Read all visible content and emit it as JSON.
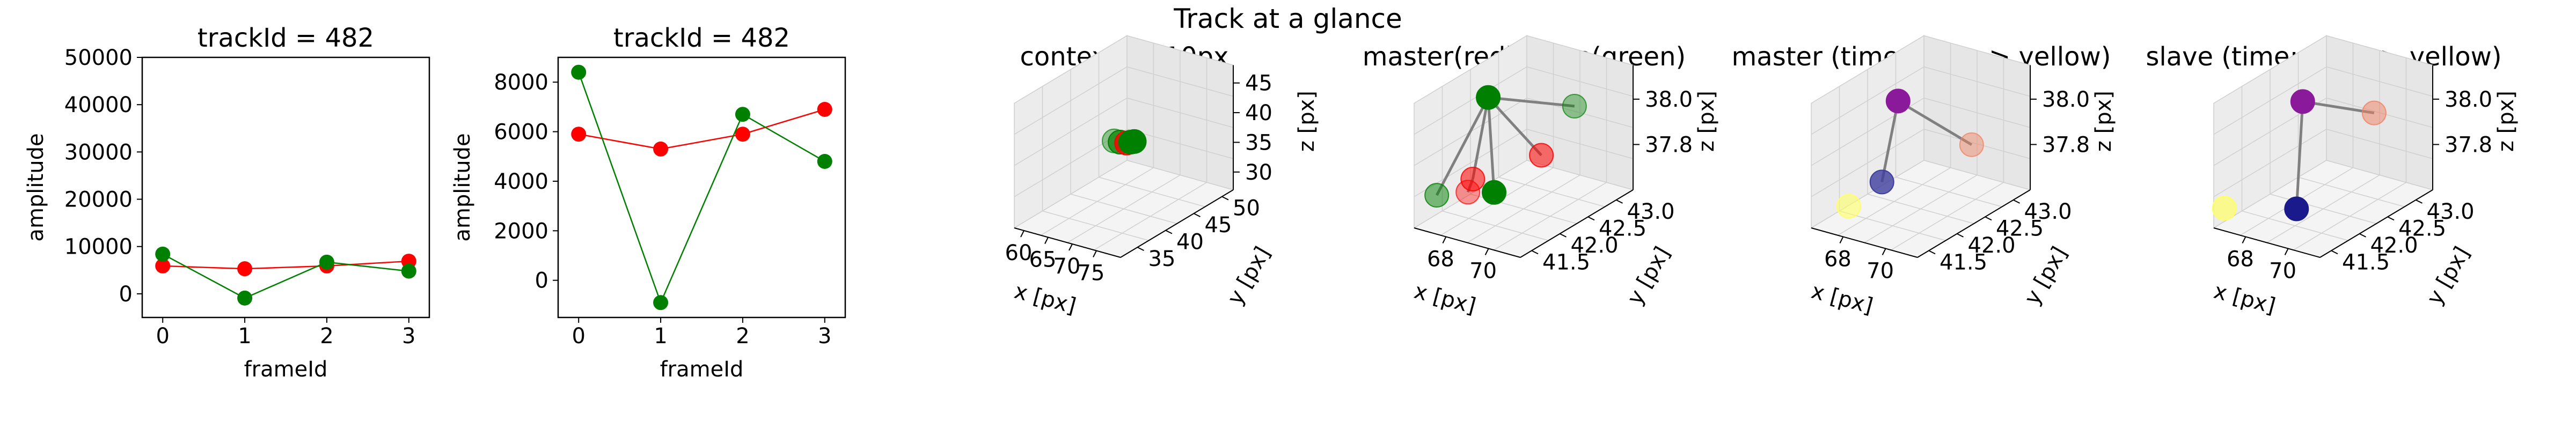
{
  "figure": {
    "title": "Track at a glance"
  },
  "colors": {
    "master": "#ff0000",
    "slave": "#008000",
    "time_start": "#1a1a8c",
    "time_end": "#ffff66",
    "connector": "#808080",
    "pane": "#f2f2f2"
  },
  "chart_data": [
    {
      "type": "line",
      "title": "trackId = 482",
      "xlabel": "frameId",
      "ylabel": "amplitude",
      "x": [
        0,
        1,
        2,
        3
      ],
      "xticks": [
        "0",
        "1",
        "2",
        "3"
      ],
      "ylim": [
        -5000,
        50000
      ],
      "yticks": [
        "0",
        "10000",
        "20000",
        "30000",
        "40000",
        "50000"
      ],
      "series": [
        {
          "color": "#ff0000",
          "values": [
            5900,
            5300,
            5900,
            6900
          ]
        },
        {
          "color": "#008000",
          "values": [
            8400,
            -900,
            6700,
            4800
          ]
        }
      ]
    },
    {
      "type": "line",
      "title": "trackId = 482",
      "xlabel": "frameId",
      "ylabel": "amplitude",
      "x": [
        0,
        1,
        2,
        3
      ],
      "xticks": [
        "0",
        "1",
        "2",
        "3"
      ],
      "ylim": [
        -1500,
        9000
      ],
      "yticks": [
        "0",
        "2000",
        "4000",
        "6000",
        "8000"
      ],
      "series": [
        {
          "color": "#ff0000",
          "values": [
            5900,
            5300,
            5900,
            6900
          ]
        },
        {
          "color": "#008000",
          "values": [
            8400,
            -900,
            6700,
            4800
          ]
        }
      ]
    },
    {
      "type": "scatter",
      "title": "context +- 10px",
      "xlabel": "x [px]",
      "ylabel": "y [px]",
      "zlabel": "z [px]",
      "xticks": [
        "60",
        "65",
        "70",
        "75"
      ],
      "yticks": [
        "35",
        "40",
        "45",
        "50"
      ],
      "zticks": [
        "30",
        "35",
        "40",
        "45"
      ],
      "xlim": [
        58,
        80
      ],
      "ylim": [
        32,
        52
      ],
      "zlim": [
        27,
        48
      ],
      "points": [
        {
          "x": 67,
          "y": 42,
          "z": 38,
          "color": "#008000",
          "alpha": 0.4
        },
        {
          "x": 68,
          "y": 42.2,
          "z": 37.9,
          "color": "#008000",
          "alpha": 0.7
        },
        {
          "x": 69,
          "y": 42.5,
          "z": 37.8,
          "color": "#ff0000",
          "alpha": 0.8
        },
        {
          "x": 69.5,
          "y": 42.8,
          "z": 37.9,
          "color": "#008000",
          "alpha": 1.0
        },
        {
          "x": 70,
          "y": 43,
          "z": 38,
          "color": "#008000",
          "alpha": 1.0
        }
      ]
    },
    {
      "type": "scatter",
      "title": "master(red) slave(green)",
      "ylabel": "y [px]",
      "xlabel": "x [px]",
      "zlabel": "z [px]",
      "xticks": [
        "68",
        "70"
      ],
      "yticks": [
        "41.5",
        "42.0",
        "42.5",
        "43.0"
      ],
      "zticks": [
        "37.8",
        "38.0"
      ],
      "xlim": [
        66.5,
        71.5
      ],
      "ylim": [
        41.3,
        43.3
      ],
      "zlim": [
        37.6,
        38.15
      ],
      "points": [
        {
          "x": 67.6,
          "y": 42.2,
          "z": 38.07,
          "color": "#008000",
          "alpha": 1.0
        },
        {
          "x": 70.6,
          "y": 42.6,
          "z": 38.05,
          "color": "#008000",
          "alpha": 0.4
        },
        {
          "x": 70.1,
          "y": 42.2,
          "z": 37.88,
          "color": "#ff0000",
          "alpha": 0.55
        },
        {
          "x": 68.2,
          "y": 41.7,
          "z": 37.8,
          "color": "#ff0000",
          "alpha": 0.55
        },
        {
          "x": 67.3,
          "y": 41.4,
          "z": 37.75,
          "color": "#008000",
          "alpha": 0.5
        },
        {
          "x": 68.5,
          "y": 41.5,
          "z": 37.78,
          "color": "#ff0000",
          "alpha": 0.4
        },
        {
          "x": 69.6,
          "y": 41.55,
          "z": 37.8,
          "color": "#008000",
          "alpha": 1.0
        }
      ],
      "links": [
        [
          0,
          1
        ],
        [
          0,
          2
        ],
        [
          0,
          3
        ],
        [
          0,
          4
        ],
        [
          0,
          6
        ],
        [
          3,
          5
        ]
      ]
    },
    {
      "type": "scatter",
      "title": "master (time: blue -> yellow)",
      "xlabel": "x [px]",
      "ylabel": "y [px]",
      "zlabel": "z [px]",
      "xticks": [
        "68",
        "70"
      ],
      "yticks": [
        "41.5",
        "42.0",
        "42.5",
        "43.0"
      ],
      "zticks": [
        "37.8",
        "38.0"
      ],
      "xlim": [
        66.5,
        71.5
      ],
      "ylim": [
        41.3,
        43.3
      ],
      "zlim": [
        37.6,
        38.15
      ],
      "points": [
        {
          "x": 68.2,
          "y": 42.2,
          "z": 38.07,
          "color": "#8b1a9b",
          "alpha": 1.0
        },
        {
          "x": 70.6,
          "y": 42.6,
          "z": 37.88,
          "color": "#f08060",
          "alpha": 0.45
        },
        {
          "x": 68.5,
          "y": 41.8,
          "z": 37.78,
          "color": "#3d3d9c",
          "alpha": 0.8
        },
        {
          "x": 68.0,
          "y": 41.4,
          "z": 37.72,
          "color": "#ffff66",
          "alpha": 0.6
        }
      ],
      "links": [
        [
          0,
          1
        ],
        [
          0,
          2
        ]
      ]
    },
    {
      "type": "scatter",
      "title": "slave (time: blue -> yellow)",
      "xlabel": "x [px]",
      "ylabel": "y [px]",
      "zlabel": "z [px]",
      "xticks": [
        "68",
        "70"
      ],
      "yticks": [
        "41.5",
        "42.0",
        "42.5",
        "43.0"
      ],
      "zticks": [
        "37.8",
        "38.0"
      ],
      "xlim": [
        66.5,
        71.5
      ],
      "ylim": [
        41.3,
        43.3
      ],
      "zlim": [
        37.6,
        38.15
      ],
      "points": [
        {
          "x": 68.3,
          "y": 42.2,
          "z": 38.07,
          "color": "#8b1a9b",
          "alpha": 1.0
        },
        {
          "x": 70.6,
          "y": 42.6,
          "z": 38.02,
          "color": "#f08060",
          "alpha": 0.5
        },
        {
          "x": 67.0,
          "y": 41.3,
          "z": 37.7,
          "color": "#ffff66",
          "alpha": 0.7
        },
        {
          "x": 69.6,
          "y": 41.6,
          "z": 37.72,
          "color": "#1a1a8c",
          "alpha": 1.0
        }
      ],
      "links": [
        [
          0,
          1
        ],
        [
          0,
          3
        ]
      ]
    }
  ]
}
